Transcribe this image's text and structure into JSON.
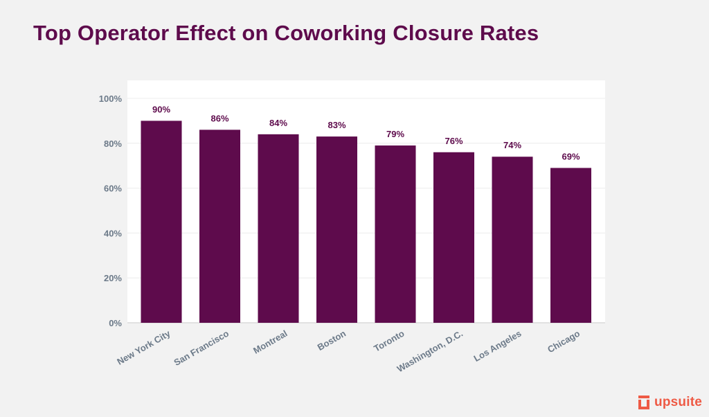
{
  "brand": {
    "name": "upsuite",
    "color": "#ee5a45"
  },
  "colors": {
    "title": "#5e0b4c",
    "bar": "#5e0b4c",
    "axis_text": "#6c7a89",
    "plot_background": "#ffffff",
    "page_background": "#f2f2f2"
  },
  "chart_data": {
    "type": "bar",
    "title": "Top Operator Effect on Coworking Closure Rates",
    "xlabel": "",
    "ylabel": "",
    "categories": [
      "New York City",
      "San Francisco",
      "Montreal",
      "Boston",
      "Toronto",
      "Washington, D.C.",
      "Los Angeles",
      "Chicago"
    ],
    "values": [
      90,
      86,
      84,
      83,
      79,
      76,
      74,
      69
    ],
    "value_labels": [
      "90%",
      "86%",
      "84%",
      "83%",
      "79%",
      "76%",
      "74%",
      "69%"
    ],
    "yticks": [
      0,
      20,
      40,
      60,
      80,
      100
    ],
    "ytick_labels": [
      "0%",
      "20%",
      "40%",
      "60%",
      "80%",
      "100%"
    ],
    "ylim": [
      0,
      100
    ],
    "grid": true,
    "legend": "none"
  }
}
